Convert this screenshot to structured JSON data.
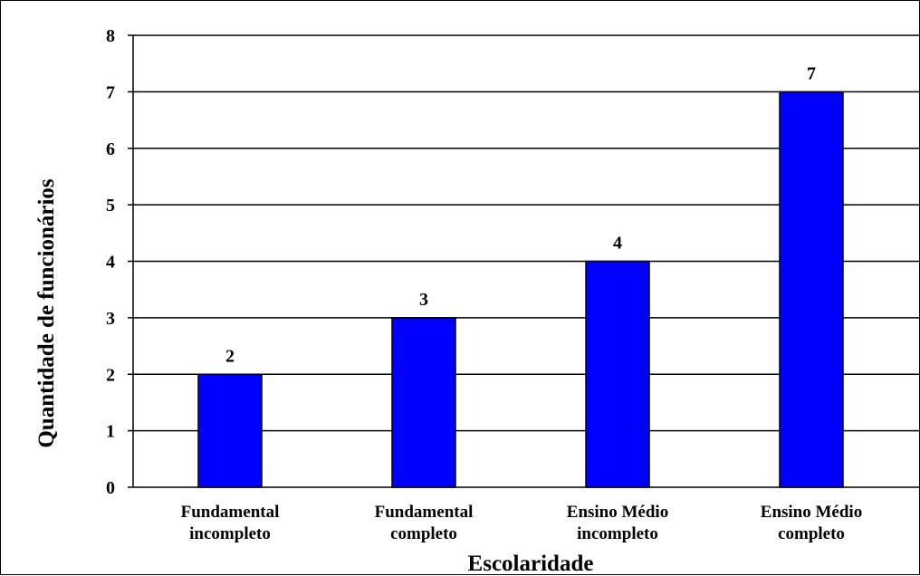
{
  "chart_data": {
    "type": "bar",
    "categories": [
      [
        "Fundamental",
        "incompleto"
      ],
      [
        "Fundamental",
        "completo"
      ],
      [
        "Ensino Médio",
        "incompleto"
      ],
      [
        "Ensino Médio",
        "completo"
      ]
    ],
    "values": [
      2,
      3,
      4,
      7
    ],
    "data_labels": [
      "2",
      "3",
      "4",
      "7"
    ],
    "xlabel": "Escolaridade",
    "ylabel": "Quantidade de funcionários",
    "ylim": [
      0,
      8
    ],
    "yticks": [
      "0",
      "1",
      "2",
      "3",
      "4",
      "5",
      "6",
      "7",
      "8"
    ],
    "grid": true,
    "legend": "none",
    "colors": {
      "bar": "#0000FF",
      "bar_stroke": "#000000",
      "grid": "#000000"
    }
  }
}
